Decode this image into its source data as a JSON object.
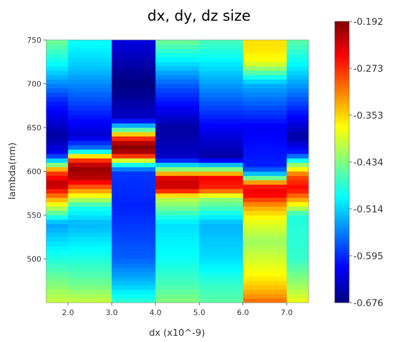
{
  "chart_data": {
    "type": "heatmap",
    "title": "dx, dy, dz size",
    "xlabel": "dx (x10^-9)",
    "ylabel": "lambda(nm)",
    "xlim": [
      1.5,
      7.5
    ],
    "ylim": [
      450,
      750
    ],
    "x_ticks": [
      2.0,
      3.0,
      4.0,
      5.0,
      6.0,
      7.0
    ],
    "x_tick_labels": [
      "2.0",
      "3.0",
      "4.0",
      "5.0",
      "6.0",
      "7.0"
    ],
    "y_ticks": [
      500,
      550,
      600,
      650,
      700,
      750
    ],
    "y_tick_labels": [
      "500",
      "550",
      "600",
      "650",
      "700",
      "750"
    ],
    "colorscale": "jet",
    "vmin": -0.676,
    "vmax": -0.192,
    "colorbar_ticks": [
      "-0.192",
      "-0.273",
      "-0.353",
      "-0.434",
      "-0.514",
      "-0.595",
      "-0.676"
    ],
    "columns": [
      {
        "x_range": [
          1.5,
          2.0
        ],
        "profile": [
          [
            450,
            -0.4
          ],
          [
            470,
            -0.43
          ],
          [
            500,
            -0.48
          ],
          [
            540,
            -0.54
          ],
          [
            565,
            -0.36
          ],
          [
            585,
            -0.21
          ],
          [
            600,
            -0.29
          ],
          [
            610,
            -0.48
          ],
          [
            620,
            -0.62
          ],
          [
            640,
            -0.66
          ],
          [
            680,
            -0.6
          ],
          [
            720,
            -0.5
          ],
          [
            750,
            -0.44
          ]
        ]
      },
      {
        "x_range": [
          2.0,
          3.0
        ],
        "profile": [
          [
            450,
            -0.4
          ],
          [
            470,
            -0.44
          ],
          [
            500,
            -0.48
          ],
          [
            540,
            -0.53
          ],
          [
            560,
            -0.48
          ],
          [
            580,
            -0.31
          ],
          [
            592,
            -0.22
          ],
          [
            605,
            -0.2
          ],
          [
            615,
            -0.3
          ],
          [
            625,
            -0.55
          ],
          [
            640,
            -0.64
          ],
          [
            680,
            -0.58
          ],
          [
            720,
            -0.52
          ],
          [
            750,
            -0.49
          ]
        ]
      },
      {
        "x_range": [
          3.0,
          4.0
        ],
        "profile": [
          [
            450,
            -0.47
          ],
          [
            470,
            -0.52
          ],
          [
            500,
            -0.57
          ],
          [
            560,
            -0.6
          ],
          [
            600,
            -0.59
          ],
          [
            610,
            -0.45
          ],
          [
            620,
            -0.22
          ],
          [
            630,
            -0.19
          ],
          [
            640,
            -0.3
          ],
          [
            650,
            -0.5
          ],
          [
            660,
            -0.64
          ],
          [
            700,
            -0.676
          ],
          [
            750,
            -0.63
          ]
        ]
      },
      {
        "x_range": [
          4.0,
          5.0
        ],
        "profile": [
          [
            450,
            -0.43
          ],
          [
            470,
            -0.46
          ],
          [
            500,
            -0.49
          ],
          [
            540,
            -0.51
          ],
          [
            570,
            -0.4
          ],
          [
            580,
            -0.23
          ],
          [
            592,
            -0.23
          ],
          [
            603,
            -0.44
          ],
          [
            615,
            -0.64
          ],
          [
            650,
            -0.66
          ],
          [
            700,
            -0.57
          ],
          [
            750,
            -0.44
          ]
        ]
      },
      {
        "x_range": [
          5.0,
          6.0
        ],
        "profile": [
          [
            450,
            -0.45
          ],
          [
            470,
            -0.47
          ],
          [
            500,
            -0.51
          ],
          [
            540,
            -0.53
          ],
          [
            570,
            -0.42
          ],
          [
            580,
            -0.27
          ],
          [
            593,
            -0.25
          ],
          [
            605,
            -0.48
          ],
          [
            615,
            -0.66
          ],
          [
            650,
            -0.62
          ],
          [
            700,
            -0.54
          ],
          [
            750,
            -0.46
          ]
        ]
      },
      {
        "x_range": [
          6.0,
          7.0
        ],
        "profile": [
          [
            450,
            -0.3
          ],
          [
            460,
            -0.33
          ],
          [
            480,
            -0.37
          ],
          [
            520,
            -0.42
          ],
          [
            545,
            -0.38
          ],
          [
            560,
            -0.33
          ],
          [
            575,
            -0.24
          ],
          [
            585,
            -0.27
          ],
          [
            595,
            -0.5
          ],
          [
            605,
            -0.6
          ],
          [
            650,
            -0.62
          ],
          [
            700,
            -0.53
          ],
          [
            725,
            -0.38
          ],
          [
            740,
            -0.36
          ],
          [
            750,
            -0.36
          ]
        ]
      },
      {
        "x_range": [
          7.0,
          7.5
        ],
        "profile": [
          [
            450,
            -0.38
          ],
          [
            470,
            -0.42
          ],
          [
            500,
            -0.47
          ],
          [
            550,
            -0.48
          ],
          [
            565,
            -0.35
          ],
          [
            580,
            -0.25
          ],
          [
            595,
            -0.29
          ],
          [
            610,
            -0.45
          ],
          [
            620,
            -0.6
          ],
          [
            640,
            -0.66
          ],
          [
            680,
            -0.58
          ],
          [
            720,
            -0.5
          ],
          [
            750,
            -0.45
          ]
        ]
      }
    ]
  }
}
